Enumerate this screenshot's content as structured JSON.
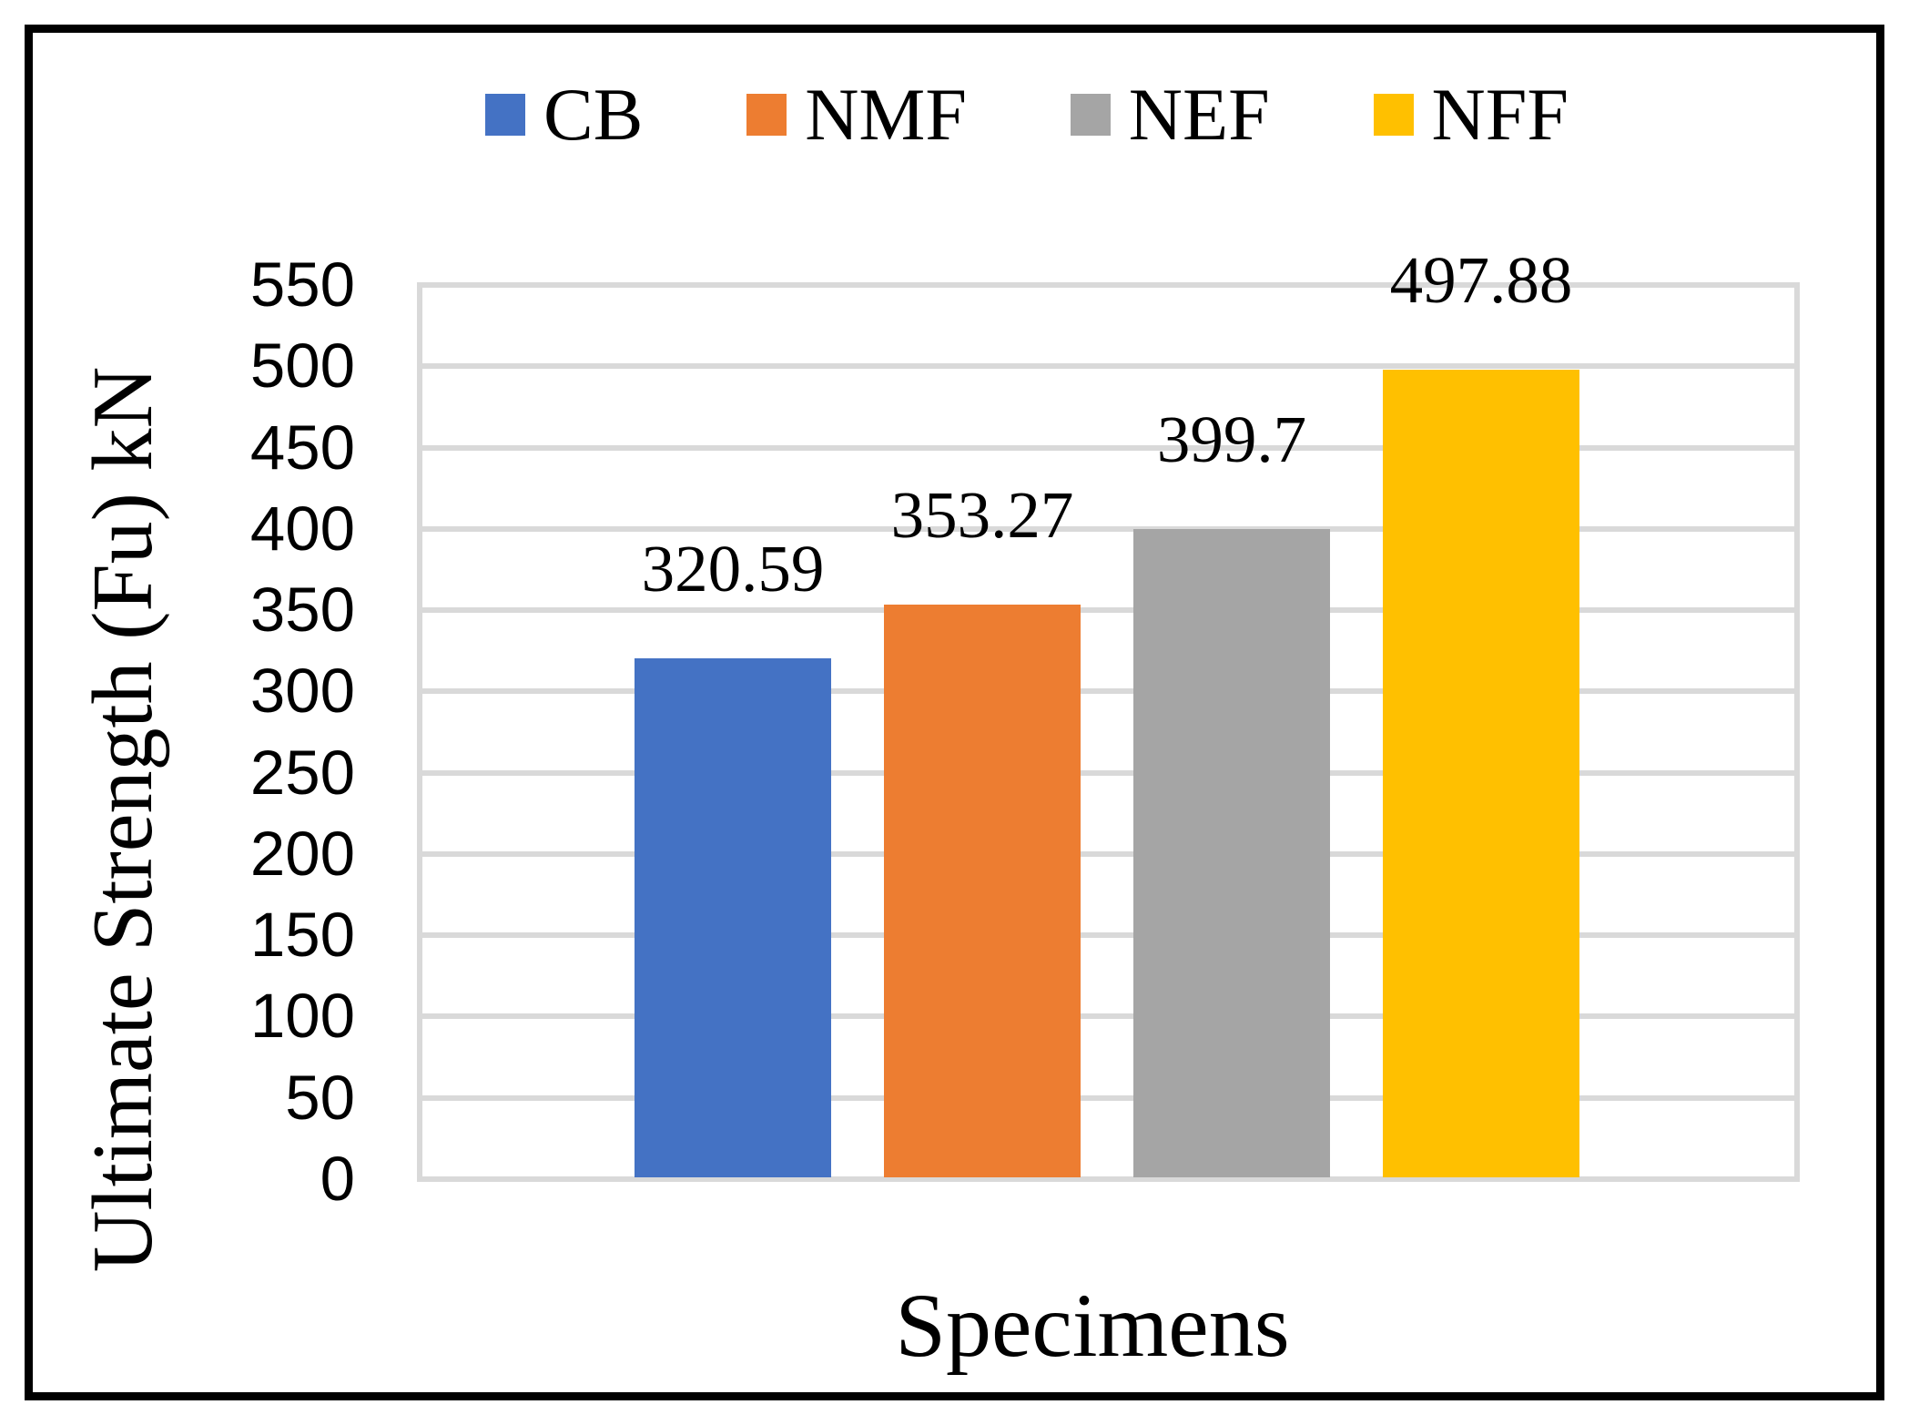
{
  "chart_data": {
    "type": "bar",
    "categories": [
      "CB",
      "NMF",
      "NEF",
      "NFF"
    ],
    "series": [
      {
        "name": "CB",
        "value": 320.59,
        "data_label": "320.59",
        "color": "#4472C4"
      },
      {
        "name": "NMF",
        "value": 353.27,
        "data_label": "353.27",
        "color": "#ED7D31"
      },
      {
        "name": "NEF",
        "value": 399.7,
        "data_label": "399.7",
        "color": "#A5A5A5"
      },
      {
        "name": "NFF",
        "value": 497.88,
        "data_label": "497.88",
        "color": "#FFC000"
      }
    ],
    "title": "",
    "xlabel": "Specimens",
    "ylabel": "Ultimate Strength (Fu) kN",
    "ylim": [
      0,
      550
    ],
    "ytick_step": 50,
    "yticks": [
      "0",
      "50",
      "100",
      "150",
      "200",
      "250",
      "300",
      "350",
      "400",
      "450",
      "500",
      "550"
    ],
    "grid": true,
    "gridline_color": "#D9D9D9",
    "legend_position": "top",
    "text_color": "#000000",
    "background_color": "#FFFFFF",
    "frame_color": "#000000"
  }
}
